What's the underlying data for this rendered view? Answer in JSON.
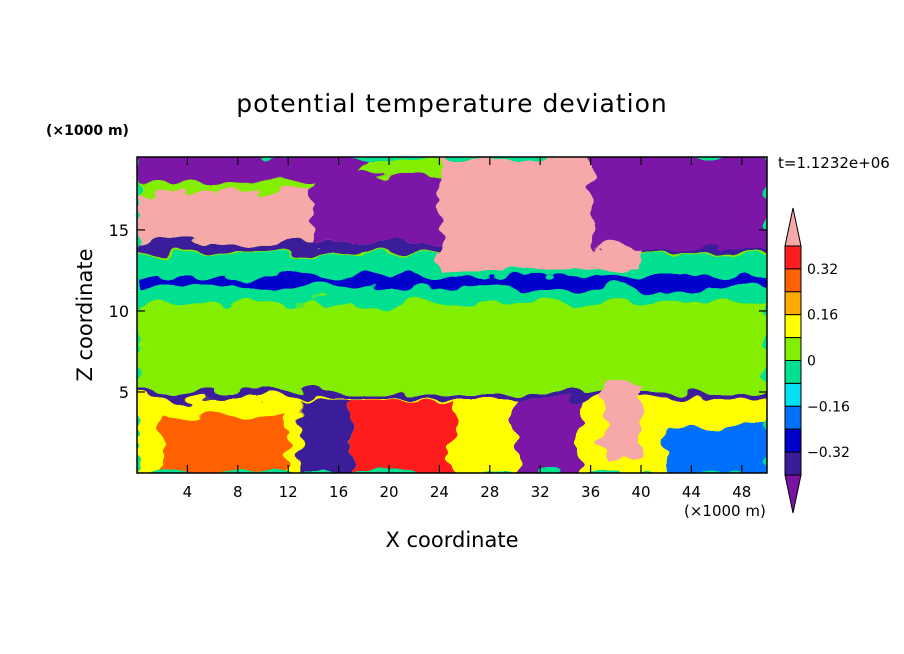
{
  "chart_data": {
    "type": "heatmap",
    "title": "potential temperature deviation",
    "xlabel": "X coordinate",
    "ylabel": "Z coordinate",
    "x_unit": "(×1000 m)",
    "y_unit": "(×1000 m)",
    "time_label": "t=1.1232e+06",
    "xlim": [
      0,
      50
    ],
    "ylim": [
      0,
      19.5
    ],
    "x_ticks": [
      4,
      8,
      12,
      16,
      20,
      24,
      28,
      32,
      36,
      40,
      44,
      48
    ],
    "y_ticks": [
      5,
      10,
      15
    ],
    "colorbar": {
      "levels": [
        -0.4,
        -0.32,
        -0.24,
        -0.16,
        -0.08,
        0,
        0.08,
        0.16,
        0.24,
        0.32,
        0.4
      ],
      "labeled_ticks": [
        "0.32",
        "0.16",
        "0",
        "−0.16",
        "−0.32"
      ],
      "colors_low_to_high": [
        "#7b12a6",
        "#3a1b9a",
        "#0000cc",
        "#0070ff",
        "#00e0f0",
        "#00e090",
        "#84ee00",
        "#ffff00",
        "#ffaa00",
        "#ff6000",
        "#ff1e1e",
        "#f7a8a8"
      ]
    },
    "regions": [
      {
        "x": [
          0,
          50
        ],
        "z": [
          0,
          19.5
        ],
        "value": 0.02
      },
      {
        "x": [
          0,
          50
        ],
        "z": [
          10.5,
          13.5
        ],
        "value": -0.07
      },
      {
        "x": [
          0,
          50
        ],
        "z": [
          5,
          10.5
        ],
        "value": 0.05
      },
      {
        "x": [
          0,
          50
        ],
        "z": [
          13.6,
          14.2
        ],
        "value": -0.36
      },
      {
        "x": [
          0,
          50
        ],
        "z": [
          11.5,
          12.1
        ],
        "value": -0.3
      },
      {
        "x": [
          0,
          50
        ],
        "z": [
          4.6,
          5.0
        ],
        "value": -0.35
      },
      {
        "x": [
          0,
          18
        ],
        "z": [
          18,
          19.5
        ],
        "value": -0.5
      },
      {
        "x": [
          0,
          25
        ],
        "z": [
          14.2,
          17.3
        ],
        "value": 0.5
      },
      {
        "x": [
          14,
          30
        ],
        "z": [
          14.2,
          18.3
        ],
        "value": -0.5
      },
      {
        "x": [
          24,
          40
        ],
        "z": [
          12.5,
          19.5
        ],
        "value": 0.5
      },
      {
        "x": [
          36,
          50
        ],
        "z": [
          13.8,
          19.5
        ],
        "value": -0.5
      },
      {
        "x": [
          0,
          50
        ],
        "z": [
          0,
          4.6
        ],
        "value": 0.1
      },
      {
        "x": [
          2,
          12
        ],
        "z": [
          0,
          3.5
        ],
        "value": 0.3
      },
      {
        "x": [
          17,
          25
        ],
        "z": [
          0,
          4.5
        ],
        "value": 0.35
      },
      {
        "x": [
          30,
          35
        ],
        "z": [
          0,
          4.6
        ],
        "value": -0.5
      },
      {
        "x": [
          13,
          17
        ],
        "z": [
          0,
          4.5
        ],
        "value": -0.4
      },
      {
        "x": [
          37,
          40
        ],
        "z": [
          1,
          5.5
        ],
        "value": 0.5
      },
      {
        "x": [
          42,
          50
        ],
        "z": [
          0,
          3.0
        ],
        "value": -0.2
      }
    ]
  }
}
